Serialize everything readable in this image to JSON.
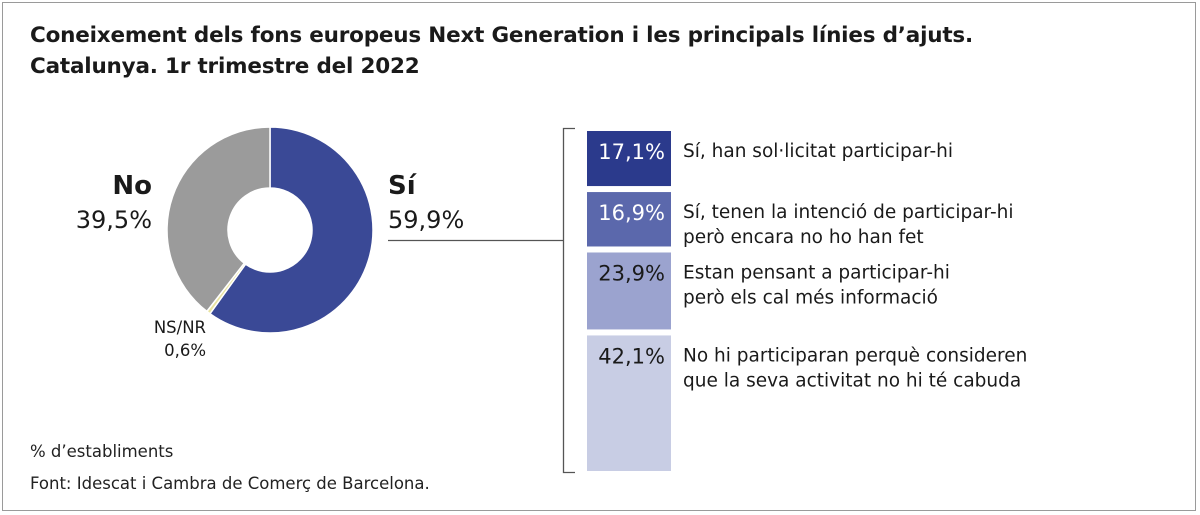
{
  "title_lines": [
    "Coneixement dels fons europeus Next Generation i les principals línies d’ajuts.",
    "Catalunya. 1r trimestre del 2022"
  ],
  "chart_data": [
    {
      "type": "pie",
      "variant": "donut",
      "title": "Coneixement dels fons europeus Next Generation i les principals línies d’ajuts. Catalunya. 1r trimestre del 2022",
      "unit": "% d’establiments",
      "slices": [
        {
          "key": "si",
          "label": "Sí",
          "value": 59.9,
          "display": "59,9%",
          "color": "#3a4996"
        },
        {
          "key": "nsnr",
          "label": "NS/NR",
          "value": 0.6,
          "display": "0,6%",
          "color": "#e8e3a0"
        },
        {
          "key": "no",
          "label": "No",
          "value": 39.5,
          "display": "39,5%",
          "color": "#9b9b9b"
        }
      ]
    },
    {
      "type": "bar",
      "variant": "stacked-100",
      "parent": "Sí",
      "categories": [
        "Sí, han sol·licitat participar-hi",
        "Sí, tenen la intenció de participar-hi però encara no ho han fet",
        "Estan pensant a participar-hi però els cal més informació",
        "No hi participaran perquè consideren que la seva activitat no hi té cabuda"
      ],
      "values": [
        17.1,
        16.9,
        23.9,
        42.1
      ],
      "segments": [
        {
          "value": 17.1,
          "display": "17,1%",
          "color": "#2b3a8c",
          "text_color": "#ffffff",
          "lines": [
            "Sí, han sol·licitat participar-hi"
          ]
        },
        {
          "value": 16.9,
          "display": "16,9%",
          "color": "#5b68ac",
          "text_color": "#ffffff",
          "lines": [
            "Sí, tenen la intenció de participar-hi",
            "però encara no ho han fet"
          ]
        },
        {
          "value": 23.9,
          "display": "23,9%",
          "color": "#9ba3cf",
          "text_color": "#1a1a1a",
          "lines": [
            "Estan pensant a participar-hi",
            "però els cal més informació"
          ]
        },
        {
          "value": 42.1,
          "display": "42,1%",
          "color": "#c8cde4",
          "text_color": "#1a1a1a",
          "lines": [
            "No hi participaran perquè consideren",
            "que la seva activitat no hi té cabuda"
          ]
        }
      ]
    }
  ],
  "footer": {
    "unit_note": "% d’establiments",
    "source": "Font: Idescat i Cambra de Comerç de Barcelona."
  }
}
